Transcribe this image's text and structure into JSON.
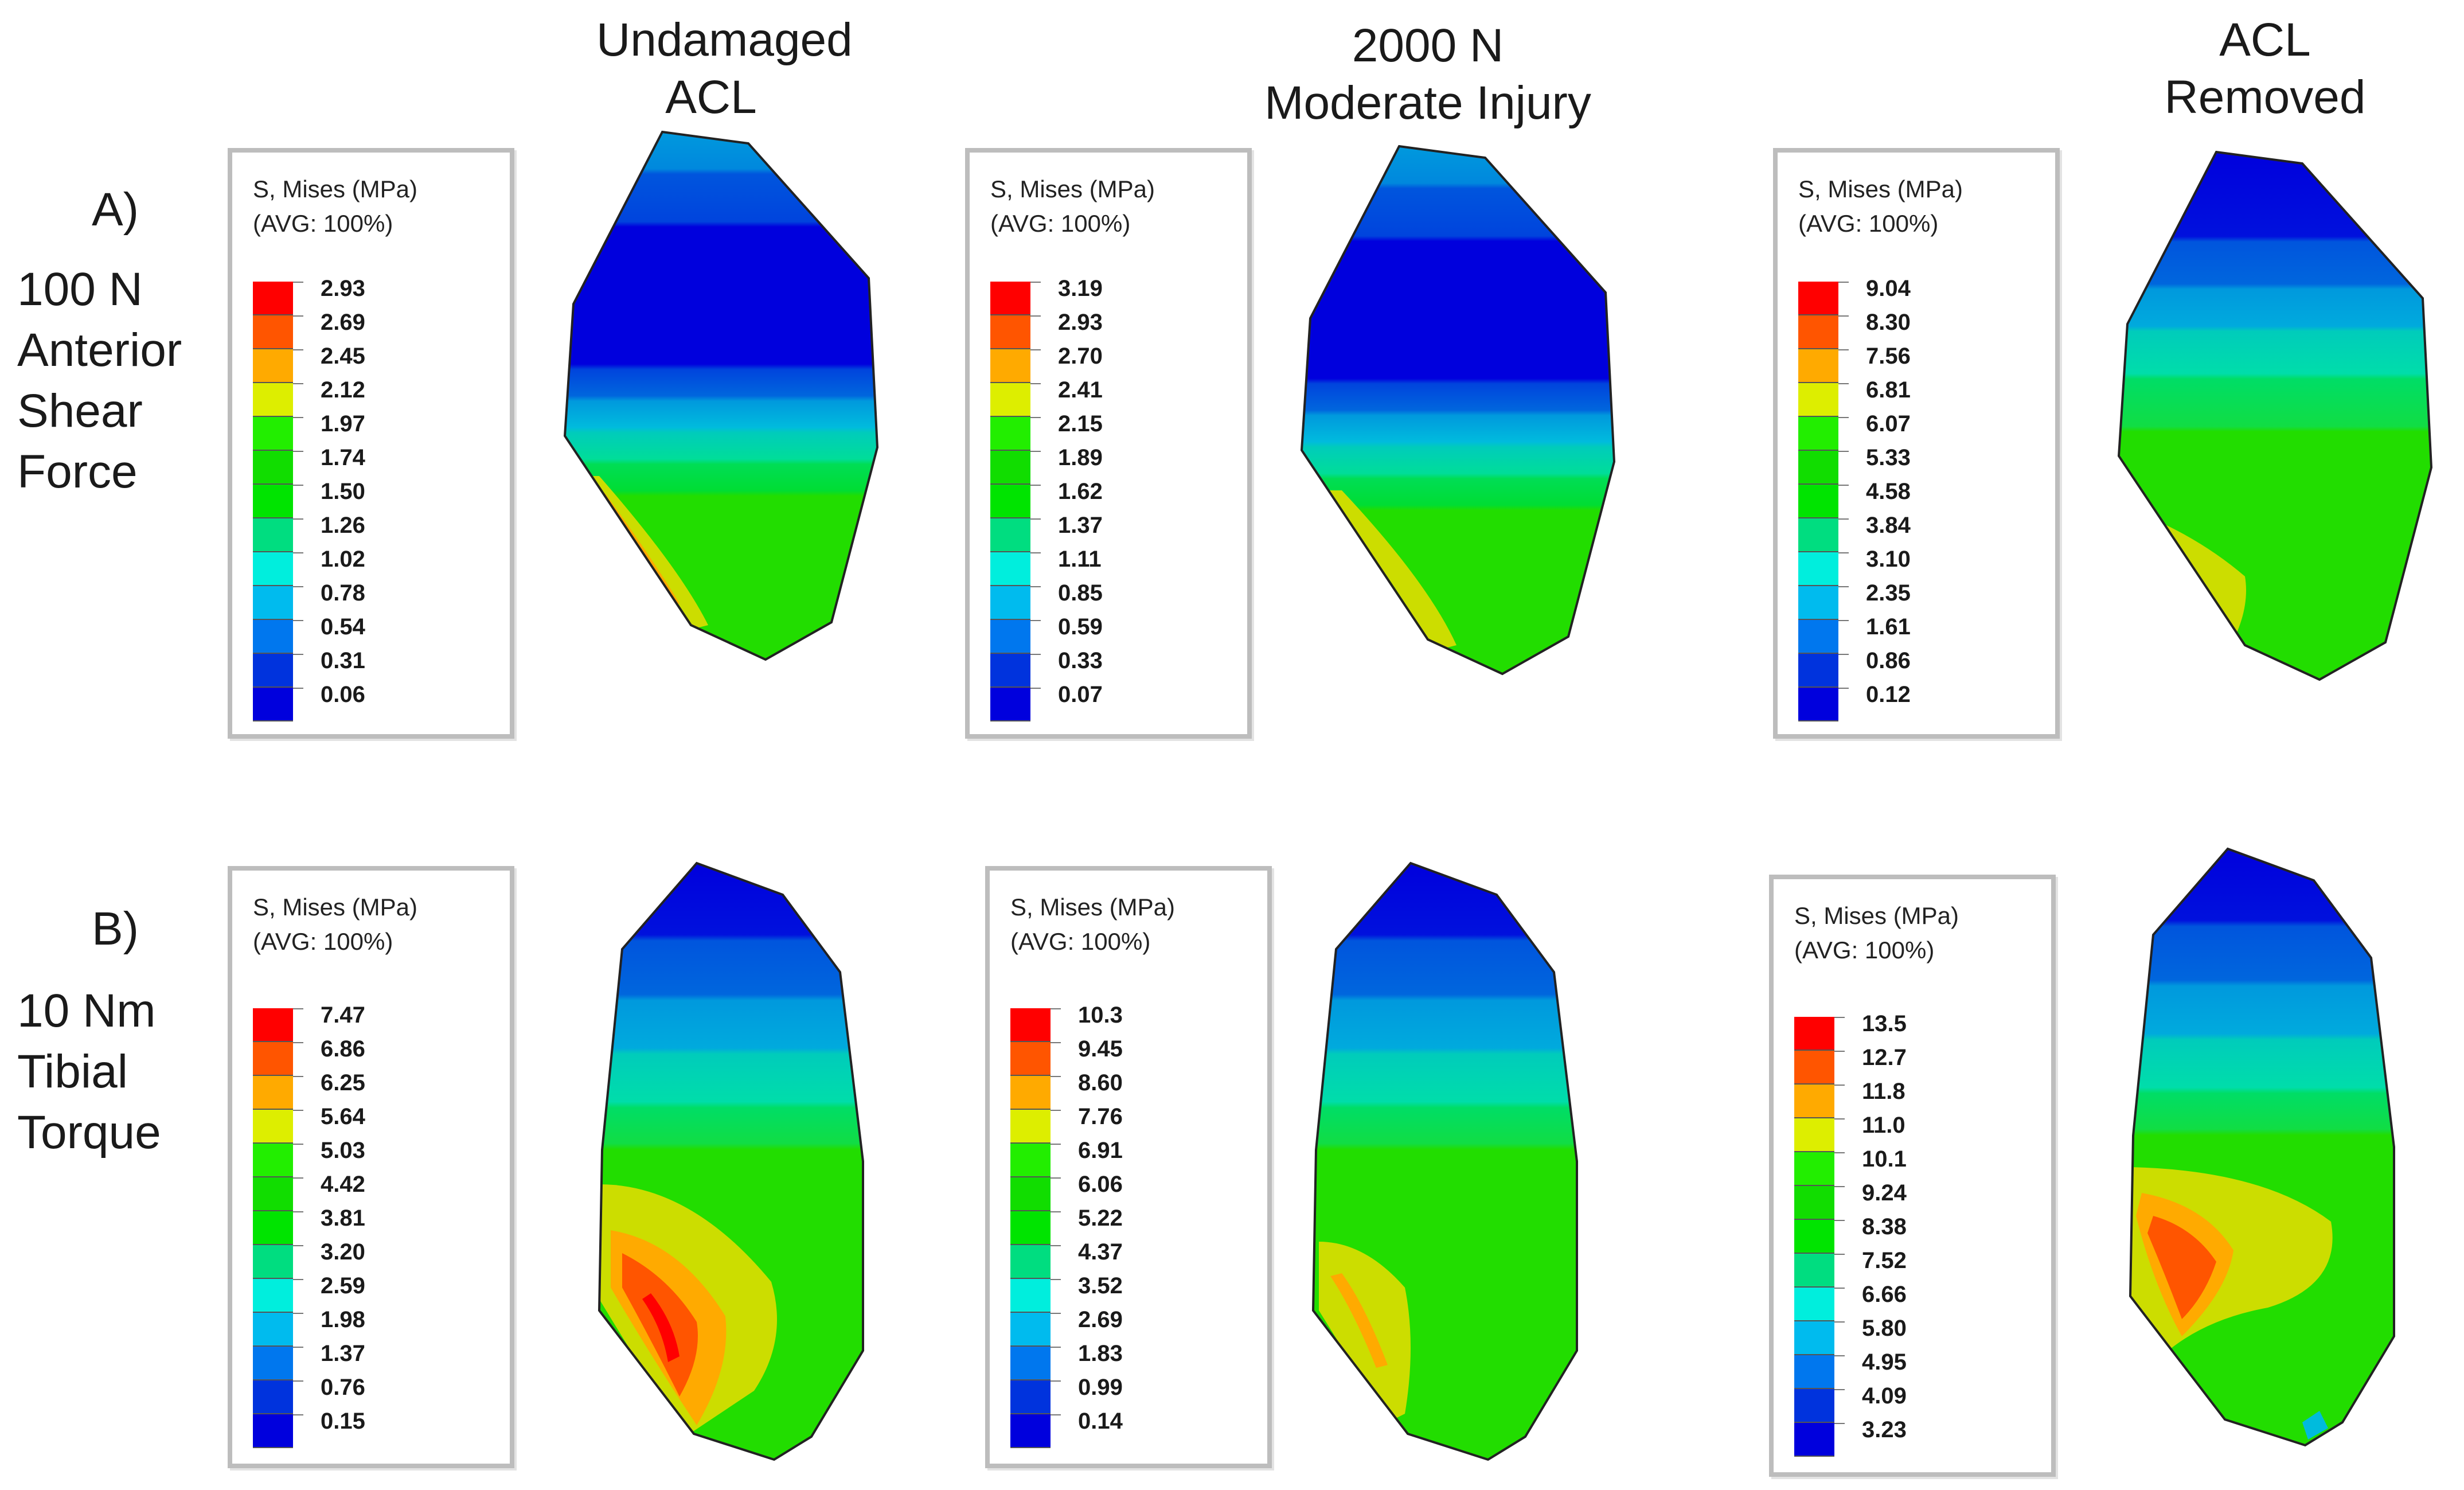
{
  "columns": [
    {
      "title_lines": [
        "Undamaged",
        "ACL"
      ]
    },
    {
      "title_lines": [
        "2000 N",
        "Moderate Injury"
      ]
    },
    {
      "title_lines": [
        "ACL",
        "Removed"
      ]
    }
  ],
  "rows": [
    {
      "letter": "A)",
      "label_lines": [
        "100 N",
        "Anterior",
        "Shear",
        "Force"
      ]
    },
    {
      "letter": "B)",
      "label_lines": [
        "10 Nm",
        "Tibial",
        "Torque"
      ]
    }
  ],
  "legend_title_lines": [
    "S, Mises (MPa)",
    "(AVG: 100%)"
  ],
  "color_scale": [
    "#ff0000",
    "#ff5500",
    "#ffaa00",
    "#ddee00",
    "#22ee00",
    "#11dd00",
    "#00e400",
    "#00dd80",
    "#00eedd",
    "#00bbee",
    "#0077ee",
    "#0033dd",
    "#0000dd"
  ],
  "panels": [
    {
      "id": "A-undamaged",
      "legend_values": [
        "2.93",
        "2.69",
        "2.45",
        "2.12",
        "1.97",
        "1.74",
        "1.50",
        "1.26",
        "1.02",
        "0.78",
        "0.54",
        "0.31",
        "0.06"
      ]
    },
    {
      "id": "A-2000N",
      "legend_values": [
        "3.19",
        "2.93",
        "2.70",
        "2.41",
        "2.15",
        "1.89",
        "1.62",
        "1.37",
        "1.11",
        "0.85",
        "0.59",
        "0.33",
        "0.07"
      ]
    },
    {
      "id": "A-removed",
      "legend_values": [
        "9.04",
        "8.30",
        "7.56",
        "6.81",
        "6.07",
        "5.33",
        "4.58",
        "3.84",
        "3.10",
        "2.35",
        "1.61",
        "0.86",
        "0.12"
      ]
    },
    {
      "id": "B-undamaged",
      "legend_values": [
        "7.47",
        "6.86",
        "6.25",
        "5.64",
        "5.03",
        "4.42",
        "3.81",
        "3.20",
        "2.59",
        "1.98",
        "1.37",
        "0.76",
        "0.15"
      ]
    },
    {
      "id": "B-2000N",
      "legend_values": [
        "10.3",
        "9.45",
        "8.60",
        "7.76",
        "6.91",
        "6.06",
        "5.22",
        "4.37",
        "3.52",
        "2.69",
        "1.83",
        "0.99",
        "0.14"
      ]
    },
    {
      "id": "B-removed",
      "legend_values": [
        "13.5",
        "12.7",
        "11.8",
        "11.0",
        "10.1",
        "9.24",
        "8.38",
        "7.52",
        "6.66",
        "5.80",
        "4.95",
        "4.09",
        "3.23"
      ]
    }
  ]
}
